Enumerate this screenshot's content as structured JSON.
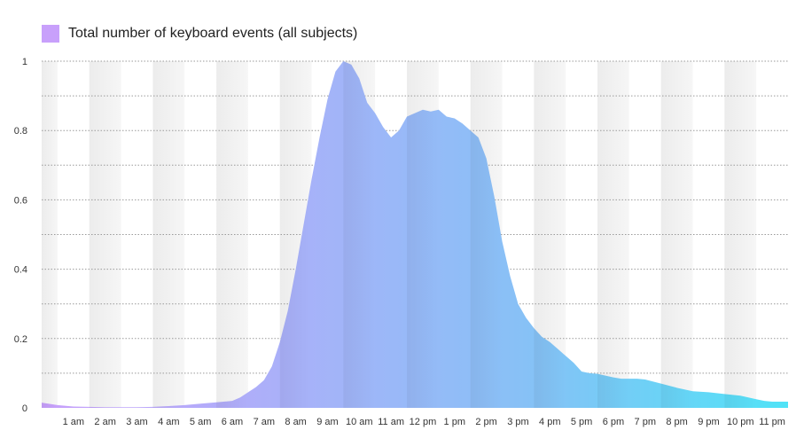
{
  "legend": {
    "label": "Total number of keyboard events (all subjects)",
    "swatch_color": "#c8a0fb"
  },
  "chart_data": {
    "type": "area",
    "title": "",
    "xlabel": "",
    "ylabel": "",
    "ylim": [
      0,
      1
    ],
    "yticks": [
      "0",
      "0.2",
      "0.4",
      "0.6",
      "0.8",
      "1"
    ],
    "x_tick_labels": [
      "1 am",
      "2 am",
      "3 am",
      "4 am",
      "5 am",
      "6 am",
      "7 am",
      "8 am",
      "9 am",
      "10 am",
      "11 am",
      "12 pm",
      "1 pm",
      "2 pm",
      "3 pm",
      "4 pm",
      "5 pm",
      "6 pm",
      "7 pm",
      "8 pm",
      "9 pm",
      "10 pm",
      "11 pm"
    ],
    "grid": true,
    "gradient_colors": [
      "#c8a0fb",
      "#a9b1f9",
      "#85c2f6",
      "#50e3f7"
    ],
    "series": [
      {
        "name": "Total number of keyboard events (all subjects)",
        "x": [
          0,
          0.5,
          1,
          1.5,
          2,
          2.5,
          3,
          3.5,
          4,
          4.5,
          5,
          5.5,
          6,
          6.25,
          6.5,
          6.75,
          7,
          7.25,
          7.5,
          7.75,
          8,
          8.25,
          8.5,
          8.75,
          9,
          9.25,
          9.5,
          9.75,
          10,
          10.25,
          10.5,
          10.75,
          11,
          11.25,
          11.5,
          11.75,
          12,
          12.25,
          12.5,
          12.75,
          13,
          13.25,
          13.5,
          13.75,
          14,
          14.25,
          14.5,
          14.75,
          15,
          15.25,
          15.5,
          15.75,
          16,
          16.25,
          16.5,
          16.75,
          17,
          17.25,
          17.5,
          17.75,
          18,
          18.25,
          18.5,
          18.75,
          19,
          19.5,
          20,
          20.5,
          21,
          21.5,
          22,
          22.25,
          22.5,
          22.75,
          23
        ],
        "values": [
          0.015,
          0.008,
          0.004,
          0.003,
          0.002,
          0.002,
          0.002,
          0.003,
          0.005,
          0.008,
          0.012,
          0.016,
          0.02,
          0.03,
          0.045,
          0.06,
          0.08,
          0.12,
          0.19,
          0.28,
          0.4,
          0.53,
          0.66,
          0.78,
          0.89,
          0.97,
          1.0,
          0.99,
          0.95,
          0.88,
          0.85,
          0.81,
          0.78,
          0.8,
          0.84,
          0.85,
          0.86,
          0.855,
          0.86,
          0.84,
          0.835,
          0.82,
          0.8,
          0.78,
          0.72,
          0.61,
          0.48,
          0.38,
          0.3,
          0.26,
          0.23,
          0.205,
          0.19,
          0.17,
          0.15,
          0.13,
          0.105,
          0.1,
          0.098,
          0.093,
          0.088,
          0.084,
          0.084,
          0.084,
          0.082,
          0.07,
          0.058,
          0.048,
          0.045,
          0.04,
          0.035,
          0.03,
          0.025,
          0.02,
          0.018
        ]
      }
    ]
  }
}
